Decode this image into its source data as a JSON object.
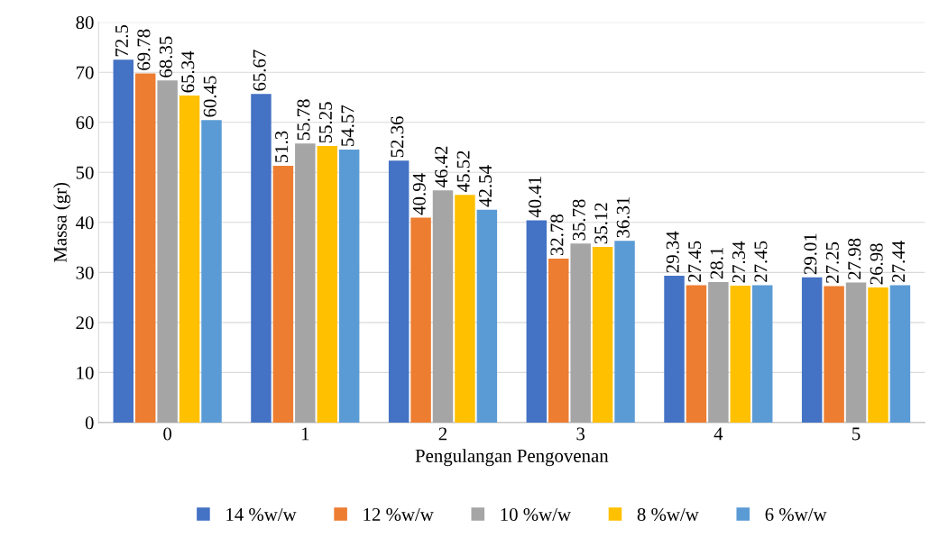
{
  "chart_data": {
    "type": "bar",
    "xlabel": "Pengulangan Pengovenan",
    "ylabel": "Massa (gr)",
    "categories": [
      "0",
      "1",
      "2",
      "3",
      "4",
      "5"
    ],
    "series": [
      {
        "name": "14 %w/w",
        "color": "#4472c4",
        "values": [
          72.5,
          65.67,
          52.36,
          40.41,
          29.34,
          29.01
        ]
      },
      {
        "name": "12 %w/w",
        "color": "#ed7d31",
        "values": [
          69.78,
          51.3,
          40.94,
          32.78,
          27.45,
          27.25
        ]
      },
      {
        "name": "10 %w/w",
        "color": "#a5a5a5",
        "values": [
          68.35,
          55.78,
          46.42,
          35.78,
          28.1,
          27.98
        ]
      },
      {
        "name": "8 %w/w",
        "color": "#ffc000",
        "values": [
          65.34,
          55.25,
          45.52,
          35.12,
          27.34,
          26.98
        ]
      },
      {
        "name": "6 %w/w",
        "color": "#5b9bd5",
        "values": [
          60.45,
          54.57,
          42.54,
          36.31,
          27.45,
          27.44
        ]
      }
    ],
    "ylim": [
      0,
      80
    ],
    "yticks": [
      0,
      10,
      20,
      30,
      40,
      50,
      60,
      70,
      80
    ],
    "grid": "y",
    "legend": "bottom",
    "data_labels": true
  }
}
